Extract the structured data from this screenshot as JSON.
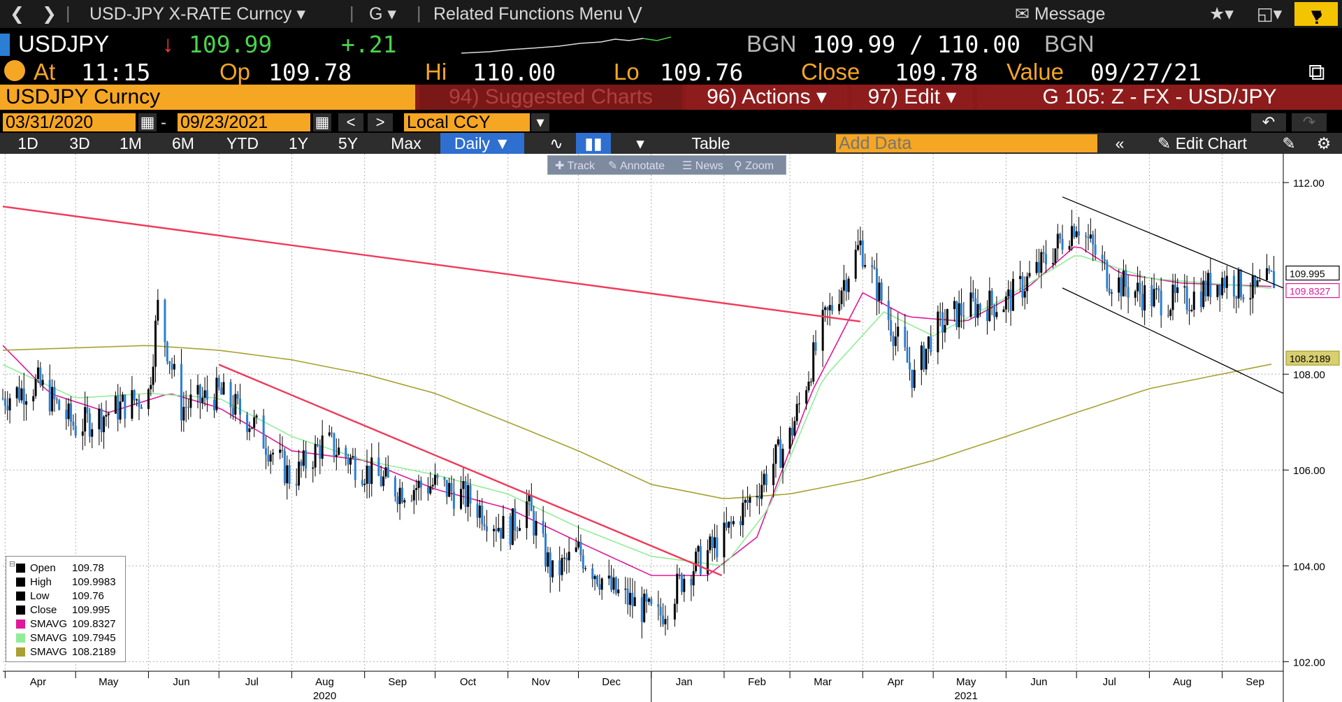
{
  "nav": {
    "security": "USD-JPY X-RATE Curncy",
    "command": "G",
    "related": "Related Functions Menu",
    "message": "Message",
    "help": "?"
  },
  "quote": {
    "ticker": "USDJPY",
    "last": "109.99",
    "change": "+.21",
    "bid_src": "BGN",
    "bid_ask": "109.99 / 110.00",
    "ask_src": "BGN"
  },
  "info": {
    "at_label": "At",
    "at_time": "11:15",
    "op_label": "Op",
    "op_val": "109.78",
    "hi_label": "Hi",
    "hi_val": "110.00",
    "lo_label": "Lo",
    "lo_val": "109.76",
    "close_label": "Close",
    "close_val": "109.78",
    "value_label": "Value",
    "value_date": "09/27/21"
  },
  "header": {
    "security": "USDJPY Curncy",
    "suggested": "94) Suggested Charts",
    "actions": "96) Actions",
    "edit": "97) Edit",
    "chart_title": "G 105: Z - FX - USD/JPY"
  },
  "dates": {
    "start": "03/31/2020",
    "sep": "-",
    "end": "09/23/2021",
    "currency": "Local CCY"
  },
  "toolbar": {
    "periods": [
      "1D",
      "3D",
      "1M",
      "6M",
      "YTD",
      "1Y",
      "5Y",
      "Max"
    ],
    "frequency": "Daily",
    "table": "Table",
    "add_data_placeholder": "Add Data",
    "edit_chart": "Edit Chart"
  },
  "float_tools": {
    "track": "Track",
    "annotate": "Annotate",
    "news": "News",
    "zoom": "Zoom"
  },
  "legend": [
    {
      "name": "Open",
      "value": "109.78",
      "color": "#000000"
    },
    {
      "name": "High",
      "value": "109.9983",
      "color": "#000000"
    },
    {
      "name": "Low",
      "value": "109.76",
      "color": "#000000"
    },
    {
      "name": "Close",
      "value": "109.995",
      "color": "#000000"
    },
    {
      "name": "SMAVG",
      "value": "109.8327",
      "color": "#e0189a"
    },
    {
      "name": "SMAVG",
      "value": "109.7945",
      "color": "#90ee98"
    },
    {
      "name": "SMAVG",
      "value": "108.2189",
      "color": "#a8a030"
    }
  ],
  "colors": {
    "accent": "#f5a623",
    "header_red": "#8a1a1a",
    "up": "#4bd44b",
    "down": "#ff3a3a"
  },
  "chart_data": {
    "type": "line",
    "title": "",
    "xlabel": "",
    "ylabel": "",
    "ylim": [
      101.8,
      112.6
    ],
    "xlim": [
      "2020-03-31",
      "2021-09-27"
    ],
    "y_ticks": [
      "102.00",
      "104.00",
      "106.00",
      "108.00",
      "112.00"
    ],
    "x_month_labels": [
      {
        "label": "Apr",
        "date": "2020-04-15"
      },
      {
        "label": "May",
        "date": "2020-05-15"
      },
      {
        "label": "Jun",
        "date": "2020-06-15"
      },
      {
        "label": "Jul",
        "date": "2020-07-15"
      },
      {
        "label": "Aug",
        "date": "2020-08-15"
      },
      {
        "label": "Sep",
        "date": "2020-09-15"
      },
      {
        "label": "Oct",
        "date": "2020-10-15"
      },
      {
        "label": "Nov",
        "date": "2020-11-15"
      },
      {
        "label": "Dec",
        "date": "2020-12-15"
      },
      {
        "label": "Jan",
        "date": "2021-01-15"
      },
      {
        "label": "Feb",
        "date": "2021-02-15"
      },
      {
        "label": "Mar",
        "date": "2021-03-15"
      },
      {
        "label": "Apr",
        "date": "2021-04-15"
      },
      {
        "label": "May",
        "date": "2021-05-15"
      },
      {
        "label": "Jun",
        "date": "2021-06-15"
      },
      {
        "label": "Jul",
        "date": "2021-07-15"
      },
      {
        "label": "Aug",
        "date": "2021-08-15"
      },
      {
        "label": "Sep",
        "date": "2021-09-15"
      }
    ],
    "x_year_labels": [
      {
        "label": "2020",
        "date": "2020-08-15"
      },
      {
        "label": "2021",
        "date": "2021-05-15"
      }
    ],
    "series": [
      {
        "name": "Close",
        "color": "#2a7fd4",
        "dates": [
          "2020-03-31",
          "2020-04-15",
          "2020-05-01",
          "2020-05-15",
          "2020-06-01",
          "2020-06-05",
          "2020-06-15",
          "2020-07-01",
          "2020-07-15",
          "2020-08-01",
          "2020-08-15",
          "2020-09-01",
          "2020-09-15",
          "2020-10-01",
          "2020-10-15",
          "2020-11-01",
          "2020-11-09",
          "2020-11-20",
          "2020-12-01",
          "2020-12-15",
          "2021-01-04",
          "2021-01-15",
          "2021-02-01",
          "2021-02-15",
          "2021-03-01",
          "2021-03-15",
          "2021-03-31",
          "2021-04-15",
          "2021-04-23",
          "2021-05-01",
          "2021-05-15",
          "2021-06-01",
          "2021-06-15",
          "2021-07-01",
          "2021-07-15",
          "2021-08-01",
          "2021-08-15",
          "2021-09-01",
          "2021-09-15",
          "2021-09-23"
        ],
        "values": [
          107.5,
          107.8,
          106.9,
          107.2,
          107.6,
          109.4,
          107.3,
          107.6,
          107.0,
          105.8,
          106.6,
          106.0,
          105.6,
          105.7,
          105.4,
          104.7,
          105.3,
          103.8,
          104.3,
          103.5,
          102.9,
          103.8,
          104.6,
          105.6,
          106.7,
          109.0,
          110.7,
          108.8,
          107.9,
          108.9,
          109.4,
          109.5,
          110.2,
          111.2,
          110.0,
          109.6,
          109.5,
          110.0,
          109.7,
          109.99
        ]
      },
      {
        "name": "SMAVG 109.8327",
        "color": "#e0189a",
        "dates": [
          "2020-03-31",
          "2020-04-20",
          "2020-05-15",
          "2020-06-10",
          "2020-07-01",
          "2020-08-01",
          "2020-09-01",
          "2020-10-01",
          "2020-11-01",
          "2020-12-01",
          "2021-01-01",
          "2021-01-25",
          "2021-02-15",
          "2021-03-10",
          "2021-04-01",
          "2021-04-20",
          "2021-05-15",
          "2021-06-10",
          "2021-07-01",
          "2021-07-20",
          "2021-08-15",
          "2021-09-23"
        ],
        "values": [
          108.6,
          107.6,
          107.2,
          107.6,
          107.3,
          106.4,
          106.2,
          105.6,
          105.2,
          104.5,
          103.8,
          103.8,
          104.6,
          107.6,
          109.7,
          109.2,
          109.1,
          109.8,
          110.7,
          110.1,
          109.9,
          109.83
        ]
      },
      {
        "name": "SMAVG 109.7945",
        "color": "#90ee98",
        "dates": [
          "2020-03-31",
          "2020-05-01",
          "2020-06-01",
          "2020-07-01",
          "2020-08-01",
          "2020-09-01",
          "2020-10-01",
          "2020-11-01",
          "2020-12-01",
          "2021-01-01",
          "2021-02-01",
          "2021-02-20",
          "2021-03-15",
          "2021-04-10",
          "2021-05-01",
          "2021-06-01",
          "2021-07-01",
          "2021-08-01",
          "2021-09-23"
        ],
        "values": [
          108.2,
          107.5,
          107.6,
          107.5,
          106.7,
          106.2,
          105.9,
          105.5,
          104.8,
          104.2,
          104.0,
          105.2,
          107.9,
          109.3,
          108.8,
          109.6,
          110.5,
          110.0,
          109.79
        ]
      },
      {
        "name": "SMAVG 108.2189",
        "color": "#a8a030",
        "dates": [
          "2020-03-31",
          "2020-06-01",
          "2020-07-01",
          "2020-08-01",
          "2020-09-01",
          "2020-10-01",
          "2020-11-01",
          "2020-12-01",
          "2021-01-01",
          "2021-02-01",
          "2021-03-01",
          "2021-04-01",
          "2021-05-01",
          "2021-06-01",
          "2021-07-01",
          "2021-08-01",
          "2021-09-23"
        ],
        "values": [
          108.5,
          108.6,
          108.5,
          108.3,
          108.0,
          107.6,
          107.0,
          106.4,
          105.7,
          105.4,
          105.5,
          105.8,
          106.2,
          106.7,
          107.2,
          107.7,
          108.22
        ]
      }
    ],
    "trendlines": [
      {
        "name": "resistance-long",
        "color": "#f03a5a",
        "from": [
          "2020-03-31",
          111.5
        ],
        "to": [
          "2021-03-31",
          109.1
        ]
      },
      {
        "name": "resistance-downtrend",
        "color": "#f03a5a",
        "from": [
          "2020-07-01",
          108.2
        ],
        "to": [
          "2021-01-31",
          103.8
        ]
      },
      {
        "name": "channel-upper",
        "color": "#000000",
        "from": [
          "2021-06-25",
          111.7
        ],
        "to": [
          "2021-09-27",
          109.8
        ]
      },
      {
        "name": "channel-lower",
        "color": "#000000",
        "from": [
          "2021-06-25",
          109.8
        ],
        "to": [
          "2021-09-27",
          107.6
        ]
      }
    ],
    "price_tags": [
      {
        "value": 109.995,
        "label": "109.995",
        "color": "#000000"
      },
      {
        "value": 109.8327,
        "label": "109.8327",
        "color": "#e0189a"
      },
      {
        "value": 108.2189,
        "label": "108.2189",
        "color": "#a8a030"
      }
    ],
    "grid": true,
    "legend_placement": "bottom-left"
  }
}
